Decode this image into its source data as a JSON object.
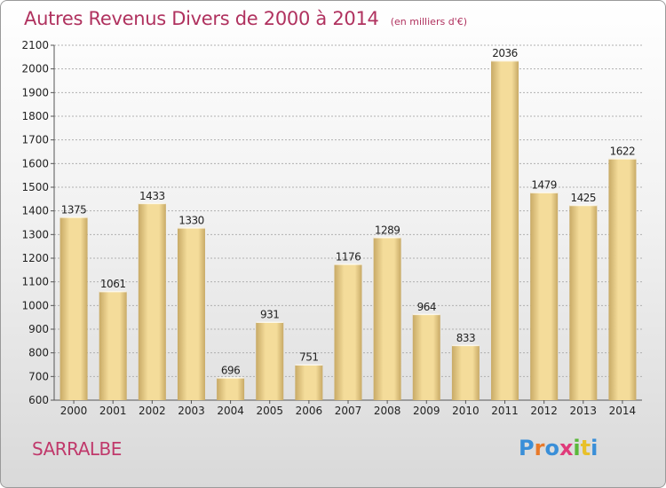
{
  "title": "Autres Revenus Divers de 2000 à 2014",
  "subtitle": "(en milliers d'€)",
  "place_name": "SARRALBE",
  "logo": {
    "text": "Proxiti",
    "letter_colors": [
      "#3a8fd8",
      "#e87a2a",
      "#3a8fd8",
      "#e03a7a",
      "#5ab83a",
      "#e8c02a",
      "#3a8fd8"
    ]
  },
  "colors": {
    "bar_light": "#f4dc9a",
    "bar_dark": "#c8aa66",
    "title": "#b0325f",
    "grid": "#b0b0b0",
    "axis": "#555555"
  },
  "chart_data": {
    "type": "bar",
    "categories": [
      "2000",
      "2001",
      "2002",
      "2003",
      "2004",
      "2005",
      "2006",
      "2007",
      "2008",
      "2009",
      "2010",
      "2011",
      "2012",
      "2013",
      "2014"
    ],
    "values": [
      1375,
      1061,
      1433,
      1330,
      696,
      931,
      751,
      1176,
      1289,
      964,
      833,
      2036,
      1479,
      1425,
      1622
    ],
    "title": "Autres Revenus Divers de 2000 à 2014",
    "subtitle": "(en milliers d'€)",
    "xlabel": "",
    "ylabel": "",
    "ylim": [
      600,
      2100
    ],
    "yticks": [
      600,
      700,
      800,
      900,
      1000,
      1100,
      1200,
      1300,
      1400,
      1500,
      1600,
      1700,
      1800,
      1900,
      2000,
      2100
    ],
    "grid": true,
    "data_labels": true
  }
}
